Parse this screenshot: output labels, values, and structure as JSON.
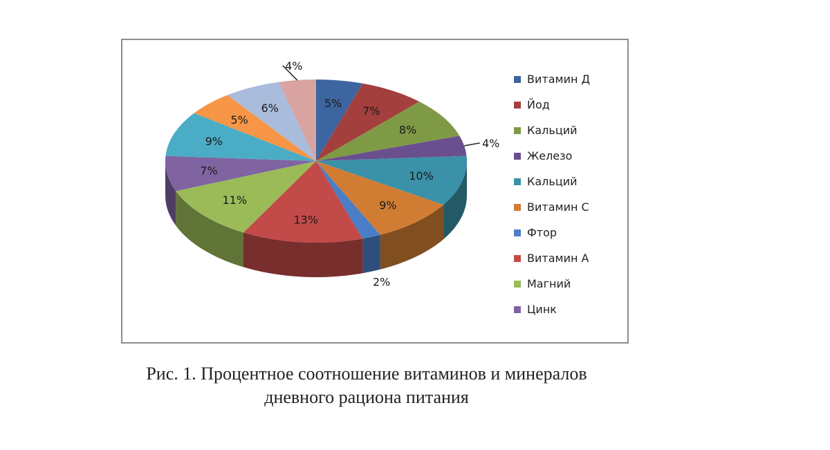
{
  "chart_data": {
    "type": "pie",
    "title": "",
    "start_angle_deg": -90,
    "direction": "clockwise",
    "legend_position": "right",
    "slices": [
      {
        "label": "Витамин Д",
        "value": 5,
        "value_label": "5%",
        "color": "#3d65a0"
      },
      {
        "label": "Йод",
        "value": 7,
        "value_label": "7%",
        "color": "#a33f3d"
      },
      {
        "label": "Кальций",
        "value": 8,
        "value_label": "8%",
        "color": "#7f9a45"
      },
      {
        "label": "Железо",
        "value": 4,
        "value_label": "4%",
        "color": "#6a4f8f"
      },
      {
        "label": "Кальций",
        "value": 10,
        "value_label": "10%",
        "color": "#3a91a8"
      },
      {
        "label": "Витамин С",
        "value": 9,
        "value_label": "9%",
        "color": "#d07d33"
      },
      {
        "label": "Фтор",
        "value": 2,
        "value_label": "2%",
        "color": "#4a7ec6"
      },
      {
        "label": "Витамин А",
        "value": 13,
        "value_label": "13%",
        "color": "#c24a48"
      },
      {
        "label": "Магний",
        "value": 11,
        "value_label": "11%",
        "color": "#9bbb59"
      },
      {
        "label": "Цинк",
        "value": 7,
        "value_label": "7%",
        "color": "#8064a2"
      },
      {
        "label": "",
        "value": 9,
        "value_label": "9%",
        "color": "#4bacc6"
      },
      {
        "label": "",
        "value": 5,
        "value_label": "5%",
        "color": "#f79646"
      },
      {
        "label": "",
        "value": 6,
        "value_label": "6%",
        "color": "#a9bcdc"
      },
      {
        "label": "",
        "value": 4,
        "value_label": "4%",
        "color": "#d9a3a2"
      }
    ]
  },
  "legend": {
    "items": [
      {
        "label": "Витамин Д",
        "color": "#3d65a0"
      },
      {
        "label": "Йод",
        "color": "#a33f3d"
      },
      {
        "label": "Кальций",
        "color": "#7f9a45"
      },
      {
        "label": "Железо",
        "color": "#6a4f8f"
      },
      {
        "label": "Кальций",
        "color": "#3a91a8"
      },
      {
        "label": "Витамин С",
        "color": "#d07d33"
      },
      {
        "label": "Фтор",
        "color": "#4a7ec6"
      },
      {
        "label": "Витамин А",
        "color": "#c24a48"
      },
      {
        "label": "Магний",
        "color": "#9bbb59"
      },
      {
        "label": "Цинк",
        "color": "#8064a2"
      }
    ]
  },
  "caption": {
    "line1": "Рис. 1. Процентное соотношение витаминов и минералов",
    "line2": "дневного рациона питания"
  }
}
